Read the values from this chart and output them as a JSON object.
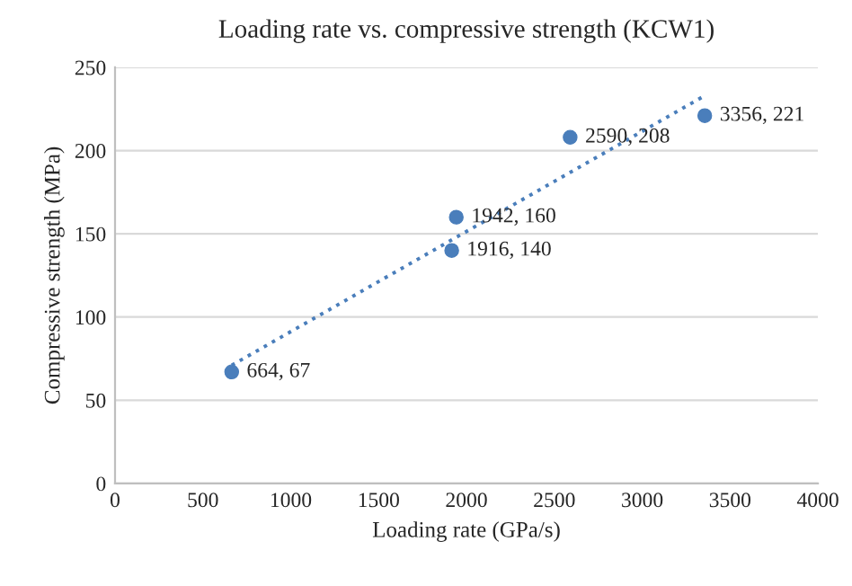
{
  "chart_data": {
    "type": "scatter",
    "title": "Loading rate vs. compressive strength (KCW1)",
    "xlabel": "Loading rate (GPa/s)",
    "ylabel": "Compressive strength (MPa)",
    "xlim": [
      0,
      4000
    ],
    "xticks": [
      0,
      500,
      1000,
      1500,
      2000,
      2500,
      3000,
      3500,
      4000
    ],
    "ylim": [
      0,
      250
    ],
    "yticks": [
      0,
      50,
      100,
      150,
      200,
      250
    ],
    "grid": "y",
    "legend": false,
    "series": [
      {
        "color": "#4a7ebb",
        "marker": "circle",
        "x": [
          664,
          1916,
          1942,
          2590,
          3356
        ],
        "values": [
          67,
          140,
          160,
          208,
          221
        ],
        "value_labels": [
          "664, 67",
          "1916, 140",
          "1942, 160",
          "2590, 208",
          "3356, 221"
        ]
      },
      {
        "type": "line",
        "color": "#4a7ebb",
        "line_style": "dotted",
        "x": [
          664,
          3356
        ],
        "values": [
          71,
          233
        ]
      }
    ]
  }
}
